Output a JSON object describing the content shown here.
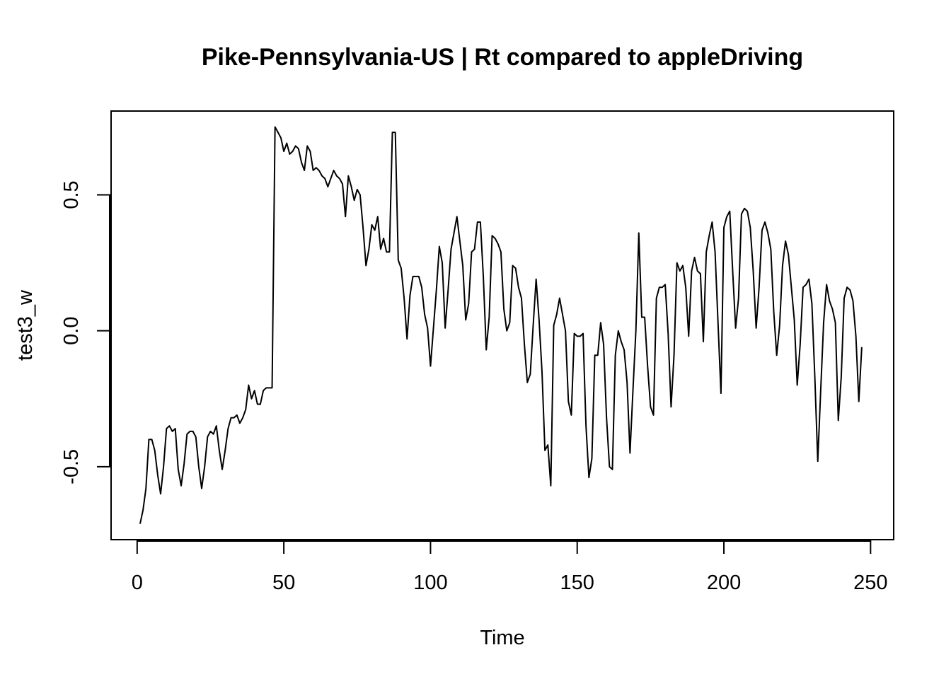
{
  "chart_data": {
    "type": "line",
    "title": "Pike-Pennsylvania-US | Rt compared to appleDriving",
    "xlabel": "Time",
    "ylabel": "test3_w",
    "xlim": [
      1,
      248
    ],
    "ylim": [
      -0.71,
      0.75
    ],
    "x_ticks": [
      0,
      50,
      100,
      150,
      200,
      250
    ],
    "y_ticks": [
      -0.5,
      0.0,
      0.5
    ],
    "x_tick_labels": [
      "0",
      "50",
      "100",
      "150",
      "200",
      "250"
    ],
    "y_tick_labels": [
      "-0.5",
      "0.0",
      "0.5"
    ],
    "grid": false,
    "legend": "none",
    "series": [
      {
        "x_start": 1,
        "x_step": 1,
        "values": [
          -0.71,
          -0.66,
          -0.58,
          -0.4,
          -0.4,
          -0.44,
          -0.53,
          -0.6,
          -0.5,
          -0.36,
          -0.35,
          -0.37,
          -0.36,
          -0.51,
          -0.57,
          -0.49,
          -0.38,
          -0.37,
          -0.37,
          -0.39,
          -0.5,
          -0.58,
          -0.5,
          -0.39,
          -0.37,
          -0.38,
          -0.35,
          -0.44,
          -0.51,
          -0.44,
          -0.36,
          -0.32,
          -0.32,
          -0.31,
          -0.34,
          -0.32,
          -0.29,
          -0.2,
          -0.25,
          -0.22,
          -0.27,
          -0.27,
          -0.22,
          -0.21,
          -0.21,
          -0.21,
          0.75,
          0.73,
          0.71,
          0.66,
          0.69,
          0.65,
          0.66,
          0.68,
          0.67,
          0.62,
          0.59,
          0.68,
          0.66,
          0.59,
          0.6,
          0.59,
          0.57,
          0.56,
          0.53,
          0.56,
          0.59,
          0.57,
          0.56,
          0.54,
          0.42,
          0.57,
          0.53,
          0.48,
          0.52,
          0.5,
          0.38,
          0.24,
          0.3,
          0.39,
          0.37,
          0.42,
          0.3,
          0.34,
          0.29,
          0.29,
          0.73,
          0.73,
          0.26,
          0.23,
          0.12,
          -0.03,
          0.13,
          0.2,
          0.2,
          0.2,
          0.16,
          0.06,
          0.01,
          -0.13,
          0.01,
          0.15,
          0.31,
          0.25,
          0.01,
          0.15,
          0.3,
          0.36,
          0.42,
          0.33,
          0.24,
          0.04,
          0.1,
          0.29,
          0.3,
          0.4,
          0.4,
          0.2,
          -0.07,
          0.05,
          0.35,
          0.34,
          0.32,
          0.29,
          0.08,
          0.0,
          0.03,
          0.24,
          0.23,
          0.16,
          0.12,
          -0.05,
          -0.19,
          -0.16,
          0.02,
          0.19,
          0.04,
          -0.15,
          -0.44,
          -0.42,
          -0.57,
          0.02,
          0.06,
          0.12,
          0.06,
          0.0,
          -0.26,
          -0.31,
          -0.01,
          -0.02,
          -0.02,
          -0.01,
          -0.35,
          -0.54,
          -0.47,
          -0.09,
          -0.09,
          0.03,
          -0.05,
          -0.32,
          -0.5,
          -0.51,
          -0.09,
          0.0,
          -0.04,
          -0.07,
          -0.19,
          -0.45,
          -0.22,
          0.0,
          0.36,
          0.05,
          0.05,
          -0.13,
          -0.28,
          -0.31,
          0.12,
          0.16,
          0.16,
          0.17,
          -0.01,
          -0.28,
          -0.09,
          0.25,
          0.22,
          0.24,
          0.16,
          -0.02,
          0.22,
          0.27,
          0.22,
          0.21,
          -0.04,
          0.29,
          0.35,
          0.4,
          0.29,
          0.03,
          -0.23,
          0.38,
          0.42,
          0.44,
          0.22,
          0.01,
          0.12,
          0.43,
          0.45,
          0.44,
          0.38,
          0.22,
          0.01,
          0.16,
          0.37,
          0.4,
          0.36,
          0.3,
          0.07,
          -0.09,
          0.02,
          0.24,
          0.33,
          0.28,
          0.16,
          0.04,
          -0.2,
          -0.05,
          0.16,
          0.17,
          0.19,
          0.1,
          -0.17,
          -0.48,
          -0.22,
          0.03,
          0.17,
          0.11,
          0.08,
          0.03,
          -0.33,
          -0.17,
          0.12,
          0.16,
          0.15,
          0.11,
          -0.02,
          -0.26,
          -0.06
        ]
      }
    ]
  }
}
